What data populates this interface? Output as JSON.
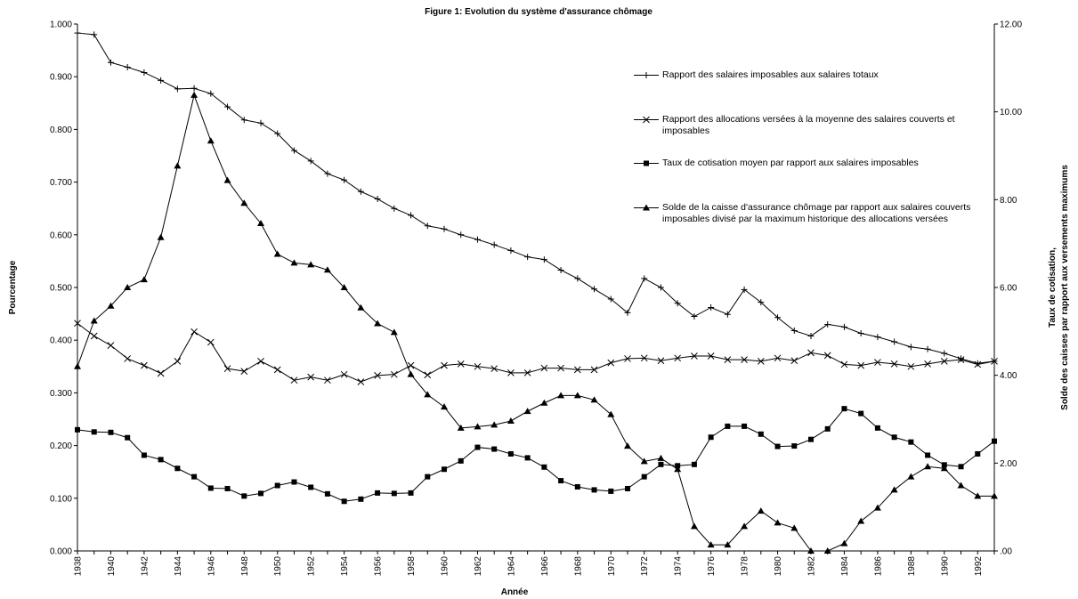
{
  "chart_data": {
    "type": "line",
    "title": "Figure 1: Evolution du système d'assurance chômage",
    "xlabel": "Année",
    "ylabel": "Pourcentage",
    "y2label": [
      "Taux de cotisation,",
      "Solde des caisses par rapport aux versements maximums"
    ],
    "categories": [
      "1938",
      null,
      "1940",
      null,
      "1942",
      null,
      "1944",
      null,
      "1946",
      null,
      "1948",
      null,
      "1950",
      null,
      "1952",
      null,
      "1954",
      null,
      "1956",
      null,
      "1958",
      null,
      "1960",
      null,
      "1962",
      null,
      "1964",
      null,
      "1966",
      null,
      "1968",
      null,
      "1970",
      null,
      "1972",
      null,
      "1974",
      null,
      "1976",
      null,
      "1978",
      null,
      "1980",
      null,
      "1982",
      null,
      "1984",
      null,
      "1986",
      null,
      "1988",
      null,
      "1990",
      null,
      "1992",
      null
    ],
    "ylim": [
      0,
      1
    ],
    "yticks": [
      {
        "value": 0,
        "label": "0.000"
      },
      {
        "value": 0.1,
        "label": "0.100"
      },
      {
        "value": 0.2,
        "label": "0.200"
      },
      {
        "value": 0.3,
        "label": "0.300"
      },
      {
        "value": 0.4,
        "label": "0.400"
      },
      {
        "value": 0.5,
        "label": "0.500"
      },
      {
        "value": 0.6,
        "label": "0.600"
      },
      {
        "value": 0.7,
        "label": "0.700"
      },
      {
        "value": 0.8,
        "label": "0.800"
      },
      {
        "value": 0.9,
        "label": "0.900"
      },
      {
        "value": 1,
        "label": "1.000"
      }
    ],
    "y2lim": [
      0,
      12
    ],
    "y2ticks": [
      {
        "value": 0,
        "label": ".00"
      },
      {
        "value": 2,
        "label": "2.00"
      },
      {
        "value": 4,
        "label": "4.00"
      },
      {
        "value": 6,
        "label": "6.00"
      },
      {
        "value": 8,
        "label": "8.00"
      },
      {
        "value": 10,
        "label": "10.00"
      },
      {
        "value": 12,
        "label": "12.00"
      }
    ],
    "grid": false,
    "series": [
      {
        "name": "Rapport des salaires imposables aux salaires totaux",
        "color": "#000000",
        "marker": "plus",
        "values": [
          0.983,
          0.98,
          0.927,
          0.918,
          0.908,
          0.893,
          0.877,
          0.878,
          0.868,
          0.843,
          0.818,
          0.812,
          0.792,
          0.76,
          0.74,
          0.716,
          0.704,
          0.682,
          0.668,
          0.65,
          0.637,
          0.617,
          0.611,
          0.6,
          0.591,
          0.581,
          0.57,
          0.558,
          0.553,
          0.533,
          0.517,
          0.497,
          0.478,
          0.452,
          0.517,
          0.5,
          0.47,
          0.445,
          0.462,
          0.449,
          0.496,
          0.472,
          0.443,
          0.418,
          0.408,
          0.43,
          0.425,
          0.413,
          0.406,
          0.397,
          0.387,
          0.383,
          0.375,
          0.365,
          0.356,
          0.36
        ]
      },
      {
        "name": "Rapport des allocations versées à la moyenne des salaires couverts et imposables",
        "color": "#000000",
        "marker": "cross",
        "values": [
          0.432,
          0.408,
          0.39,
          0.365,
          0.352,
          0.337,
          0.36,
          0.416,
          0.396,
          0.346,
          0.341,
          0.36,
          0.344,
          0.324,
          0.33,
          0.324,
          0.335,
          0.321,
          0.333,
          0.335,
          0.352,
          0.334,
          0.352,
          0.355,
          0.35,
          0.346,
          0.338,
          0.338,
          0.347,
          0.347,
          0.344,
          0.344,
          0.357,
          0.365,
          0.366,
          0.361,
          0.366,
          0.37,
          0.37,
          0.363,
          0.363,
          0.36,
          0.366,
          0.361,
          0.376,
          0.371,
          0.354,
          0.352,
          0.358,
          0.355,
          0.35,
          0.355,
          0.36,
          0.363,
          0.354,
          0.36
        ]
      },
      {
        "name": "Taux de cotisation moyen par rapport aux salaires imposables",
        "color": "#000000",
        "marker": "square",
        "axis": "y2",
        "values": [
          2.76,
          2.71,
          2.7,
          2.58,
          2.18,
          2.08,
          1.88,
          1.69,
          1.43,
          1.42,
          1.25,
          1.31,
          1.49,
          1.57,
          1.45,
          1.3,
          1.13,
          1.18,
          1.32,
          1.31,
          1.32,
          1.69,
          1.86,
          2.05,
          2.36,
          2.32,
          2.21,
          2.12,
          1.91,
          1.6,
          1.46,
          1.39,
          1.36,
          1.42,
          1.69,
          1.97,
          1.94,
          1.97,
          2.59,
          2.84,
          2.84,
          2.66,
          2.38,
          2.39,
          2.54,
          2.78,
          3.24,
          3.13,
          2.8,
          2.59,
          2.48,
          2.18,
          1.96,
          1.92,
          2.21,
          2.5
        ]
      },
      {
        "name": "Solde de la caisse d'assurance chômage par rapport aux salaires couverts imposables divisé par la maximum historique des allocations versées",
        "color": "#000000",
        "marker": "triangle",
        "axis": "y2",
        "values": [
          4.2,
          5.24,
          5.58,
          6.0,
          6.18,
          7.14,
          8.77,
          10.38,
          9.34,
          8.44,
          7.92,
          7.46,
          6.76,
          6.56,
          6.52,
          6.4,
          6.0,
          5.54,
          5.18,
          4.98,
          4.02,
          3.56,
          3.28,
          2.8,
          2.83,
          2.87,
          2.96,
          3.18,
          3.37,
          3.54,
          3.54,
          3.44,
          3.11,
          2.39,
          2.04,
          2.11,
          1.86,
          0.56,
          0.14,
          0.14,
          0.56,
          0.91,
          0.64,
          0.52,
          0,
          0,
          0.17,
          0.68,
          0.98,
          1.39,
          1.69,
          1.92,
          1.88,
          1.49,
          1.25,
          1.25
        ]
      }
    ]
  }
}
